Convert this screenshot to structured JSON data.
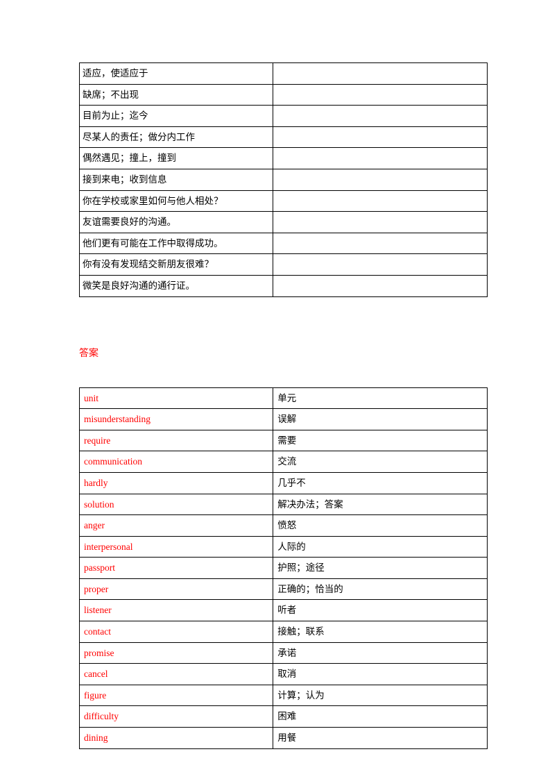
{
  "table1": {
    "border_color": "#000000",
    "font_size": 13.5,
    "rows": [
      {
        "left": " 适应，使适应于",
        "right": "",
        "padded": true
      },
      {
        "left": "缺席；不出现",
        "right": ""
      },
      {
        "left": "目前为止；迄今",
        "right": ""
      },
      {
        "left": "尽某人的责任；做分内工作",
        "right": ""
      },
      {
        "left": "偶然遇见；撞上，撞到",
        "right": ""
      },
      {
        "left": "接到来电；收到信息",
        "right": ""
      },
      {
        "left": "你在学校或家里如何与他人相处？",
        "right": ""
      },
      {
        "left": " 友谊需要良好的沟通。",
        "right": ""
      },
      {
        "left": "他们更有可能在工作中取得成功。",
        "right": ""
      },
      {
        "left": "你有没有发现结交新朋友很难？",
        "right": ""
      },
      {
        "left": "微笑是良好沟通的通行证。",
        "right": ""
      }
    ]
  },
  "answer_label": "答案",
  "table2": {
    "border_color": "#000000",
    "font_size": 13.5,
    "left_color": "#ff0000",
    "right_color": "#000000",
    "rows": [
      {
        "left": "unit",
        "right": "单元"
      },
      {
        "left": "misunderstanding",
        "right": "误解"
      },
      {
        "left": "require",
        "right": "需要"
      },
      {
        "left": "communication",
        "right": "交流"
      },
      {
        "left": "hardly",
        "right": "几乎不"
      },
      {
        "left": "solution",
        "right": "解决办法；答案"
      },
      {
        "left": "anger",
        "right": "愤怒"
      },
      {
        "left": "interpersonal",
        "right": "人际的"
      },
      {
        "left": "passport",
        "right": "护照；途径"
      },
      {
        "left": "proper",
        "right": "正确的；恰当的"
      },
      {
        "left": "listener",
        "right": "听者"
      },
      {
        "left": "contact",
        "right": "接触；联系"
      },
      {
        "left": "promise",
        "right": "承诺"
      },
      {
        "left": "cancel",
        "right": "取消"
      },
      {
        "left": "figure",
        "right": "计算；认为"
      },
      {
        "left": "difficulty",
        "right": "困难"
      },
      {
        "left": "dining",
        "right": "用餐"
      }
    ]
  }
}
